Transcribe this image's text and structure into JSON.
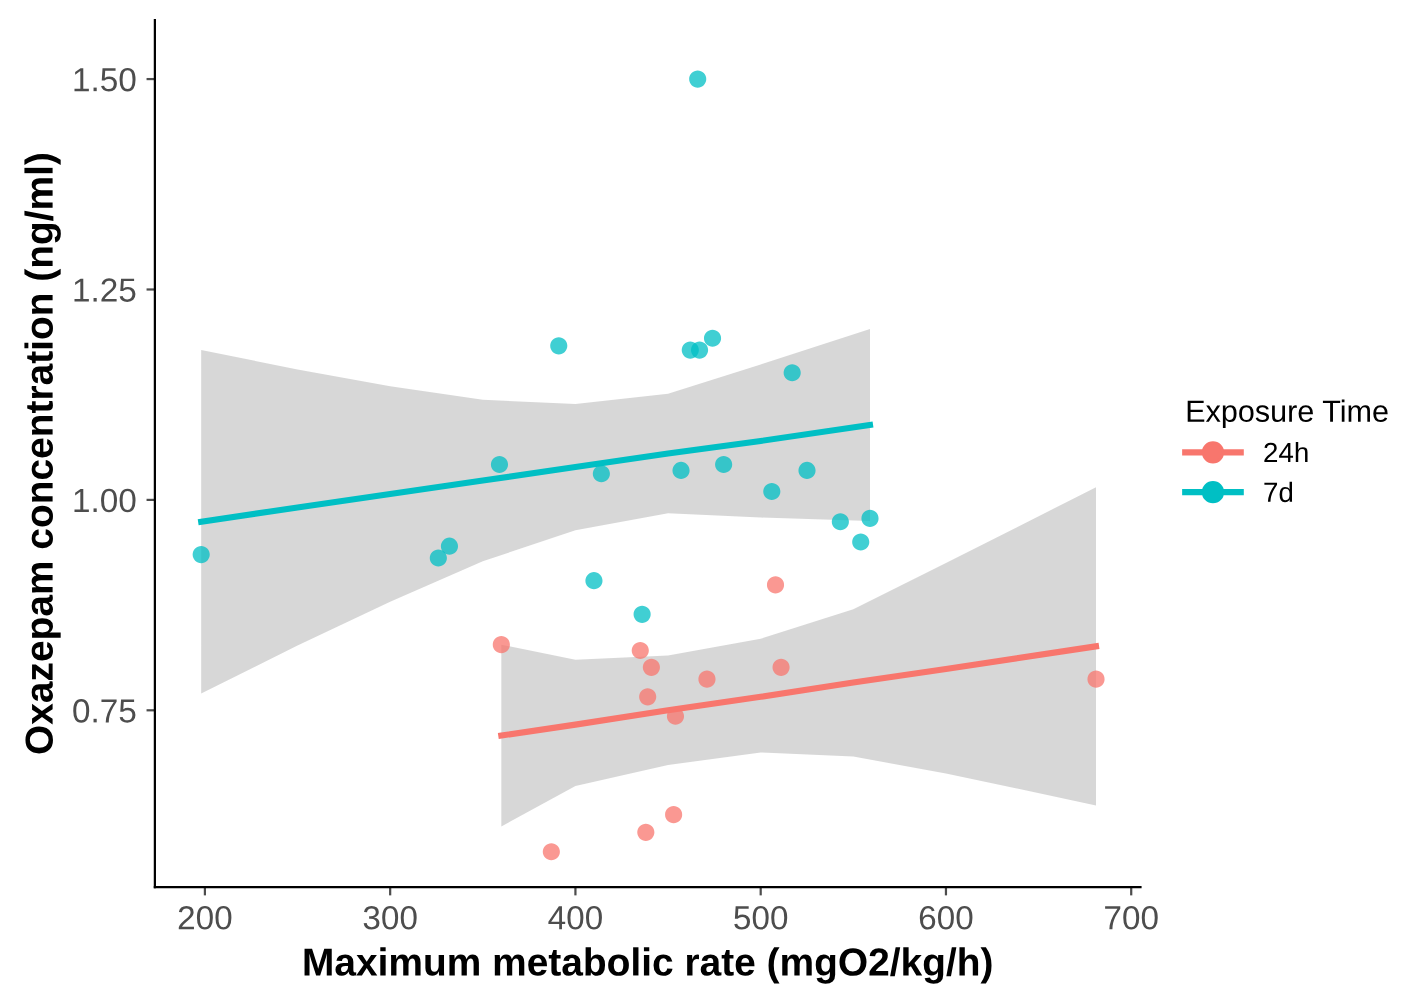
{
  "chart_data": {
    "type": "scatter",
    "xlabel": "Maximum metabolic rate (mgO2/kg/h)",
    "ylabel": "Oxazepam concentration (ng/ml)",
    "legend_title": "Exposure Time",
    "legend": "right",
    "grid": false,
    "xlim": [
      173,
      705
    ],
    "xticks": [
      200,
      300,
      400,
      500,
      600,
      700
    ],
    "ylim": [
      0.54,
      1.57
    ],
    "yticks": [
      {
        "value": 0.75,
        "label": "0.75"
      },
      {
        "value": 1.0,
        "label": "1.00"
      },
      {
        "value": 1.25,
        "label": "1.25"
      },
      {
        "value": 1.5,
        "label": "1.50"
      }
    ],
    "series": [
      {
        "type": "line",
        "color": "#f8766d",
        "x": [
          360,
          400,
          450,
          500,
          550,
          600,
          681
        ],
        "values": [
          0.72,
          0.733,
          0.75,
          0.766,
          0.783,
          0.799,
          0.826
        ],
        "lower": [
          0.612,
          0.66,
          0.685,
          0.7,
          0.695,
          0.675,
          0.637
        ],
        "upper": [
          0.828,
          0.81,
          0.815,
          0.835,
          0.87,
          0.925,
          1.015
        ]
      },
      {
        "type": "line",
        "color": "#00bfc4",
        "x": [
          198,
          250,
          300,
          350,
          400,
          450,
          500,
          559
        ],
        "values": [
          0.974,
          0.991,
          1.007,
          1.023,
          1.039,
          1.055,
          1.07,
          1.089
        ],
        "lower": [
          0.77,
          0.827,
          0.879,
          0.927,
          0.964,
          0.984,
          0.979,
          0.975
        ],
        "upper": [
          1.178,
          1.155,
          1.135,
          1.119,
          1.114,
          1.126,
          1.161,
          1.203
        ]
      },
      {
        "name": "24h",
        "marker": "circle",
        "color": "#f8766d",
        "x": [
          360,
          435,
          441,
          471,
          511,
          508,
          439,
          454,
          681,
          453,
          438,
          387
        ],
        "values": [
          0.828,
          0.821,
          0.801,
          0.787,
          0.801,
          0.899,
          0.766,
          0.743,
          0.787,
          0.626,
          0.605,
          0.582
        ]
      },
      {
        "name": "7d",
        "marker": "circle",
        "color": "#00bfc4",
        "x": [
          198,
          466,
          391,
          462,
          467,
          474,
          517,
          359,
          414,
          457,
          480,
          525,
          506,
          543,
          559,
          554,
          332,
          326,
          410,
          436
        ],
        "values": [
          0.935,
          1.5,
          1.183,
          1.178,
          1.178,
          1.192,
          1.151,
          1.042,
          1.031,
          1.035,
          1.042,
          1.035,
          1.01,
          0.974,
          0.978,
          0.95,
          0.945,
          0.931,
          0.904,
          0.864
        ]
      }
    ]
  }
}
